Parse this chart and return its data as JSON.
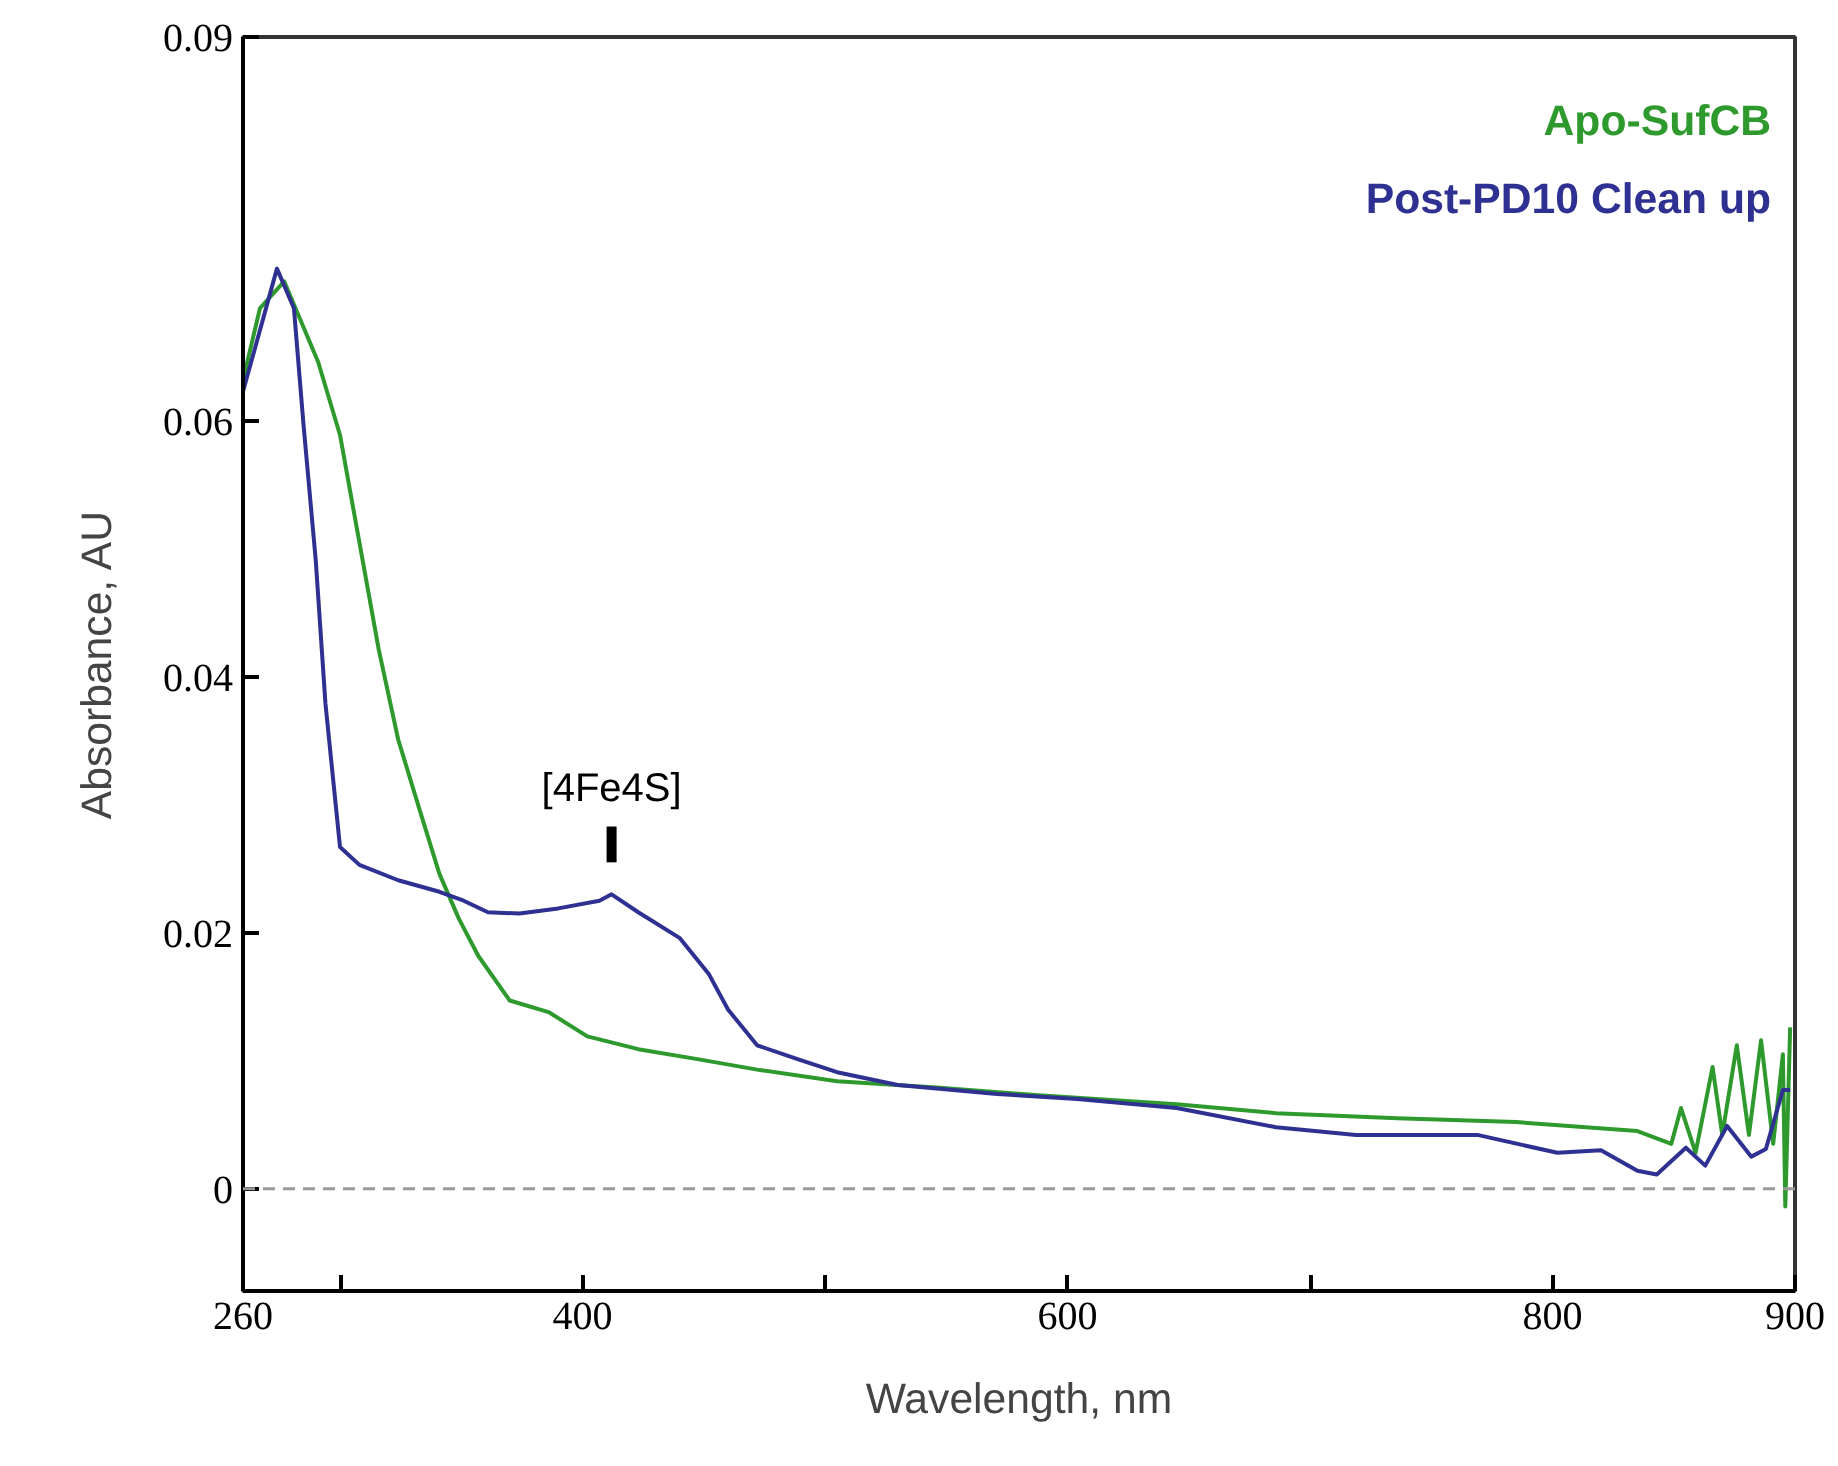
{
  "chart_data": {
    "type": "line",
    "xlabel": "Wavelength, nm",
    "ylabel": "Absorbance, AU",
    "xlim": [
      260,
      900
    ],
    "ylim": [
      -0.008,
      0.09
    ],
    "xticks": [
      260,
      {
        "value": 300,
        "label": null
      },
      400,
      {
        "value": 500,
        "label": null
      },
      600,
      {
        "value": 700,
        "label": null
      },
      800,
      900
    ],
    "yticks": [
      0,
      0.02,
      0.04,
      0.06,
      0.09
    ],
    "grid": false,
    "legend": "top right",
    "line_style": "solid",
    "marker": "none",
    "ref_lines": [
      {
        "axis": "y",
        "value": 0,
        "label": null,
        "color": "#999999",
        "line_style": "dashed"
      }
    ],
    "annotations": [
      {
        "text": "[4Fe4S]",
        "x": 412,
        "y": 0.023
      }
    ],
    "series": [
      {
        "name": "Apo-SufCB",
        "color": "#2e9a2e",
        "x": [
          260,
          267,
          277,
          291,
          300,
          308,
          316,
          324,
          333,
          341,
          349,
          357,
          370,
          386,
          402,
          423,
          448,
          472,
          505,
          546,
          588,
          645,
          686,
          736,
          785,
          835,
          849,
          853,
          859,
          866,
          870,
          876,
          881,
          886,
          891,
          895,
          896,
          898
        ],
        "values": [
          0.0632,
          0.0688,
          0.0709,
          0.0646,
          0.0589,
          0.0505,
          0.0421,
          0.0351,
          0.0295,
          0.0246,
          0.0211,
          0.0182,
          0.0147,
          0.0138,
          0.0119,
          0.0109,
          0.0101,
          0.0093,
          0.0084,
          0.0079,
          0.0073,
          0.0066,
          0.0059,
          0.0055,
          0.0052,
          0.0045,
          0.0035,
          0.0063,
          0.0028,
          0.0095,
          0.0042,
          0.0112,
          0.0042,
          0.0116,
          0.0035,
          0.0105,
          -0.0014,
          0.0126
        ]
      },
      {
        "name": "Post-PD10 Clean up",
        "color": "#2e3192",
        "x": [
          260,
          274,
          281,
          285,
          290,
          294,
          300,
          308,
          324,
          341,
          351,
          361,
          374,
          390,
          407,
          412,
          423,
          440,
          452,
          460,
          472,
          489,
          505,
          530,
          571,
          604,
          645,
          686,
          719,
          769,
          802,
          820,
          835,
          843,
          855,
          863,
          872,
          882,
          888,
          895,
          898
        ],
        "values": [
          0.0623,
          0.0719,
          0.0688,
          0.0596,
          0.0491,
          0.0379,
          0.0267,
          0.0253,
          0.0241,
          0.0232,
          0.0225,
          0.0216,
          0.0215,
          0.0219,
          0.0225,
          0.023,
          0.0216,
          0.0196,
          0.0168,
          0.014,
          0.0112,
          0.0101,
          0.0091,
          0.0081,
          0.0074,
          0.007,
          0.0063,
          0.0048,
          0.0042,
          0.0042,
          0.0028,
          0.003,
          0.0014,
          0.0011,
          0.0032,
          0.0018,
          0.0049,
          0.0025,
          0.0031,
          0.0077,
          0.0077
        ]
      }
    ]
  }
}
